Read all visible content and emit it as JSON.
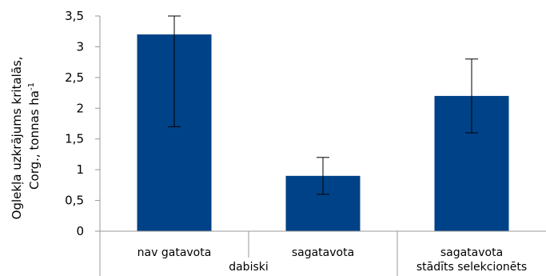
{
  "chart_data": {
    "type": "bar",
    "ylabel_lines": [
      "Oglekļa uzkrājums kritalās,",
      "Corg., tonnas ha"
    ],
    "ylabel_superscript": "-1",
    "ylim": [
      0,
      3.5
    ],
    "y_ticks": [
      {
        "value": 0,
        "label": "0"
      },
      {
        "value": 0.5,
        "label": "0,5"
      },
      {
        "value": 1,
        "label": "1"
      },
      {
        "value": 1.5,
        "label": "1,5"
      },
      {
        "value": 2,
        "label": "2"
      },
      {
        "value": 2.5,
        "label": "2,5"
      },
      {
        "value": 3,
        "label": "3"
      },
      {
        "value": 3.5,
        "label": "3,5"
      }
    ],
    "categories": [
      "nav gatavota",
      "sagatavota",
      "sagatavota"
    ],
    "groups": [
      {
        "label": "dabiski",
        "span": 2
      },
      {
        "label": "stādīts selekcionēts",
        "span": 1
      }
    ],
    "values": [
      3.2,
      0.9,
      2.2
    ],
    "error_low": [
      1.7,
      0.6,
      1.6
    ],
    "error_high": [
      3.5,
      1.2,
      2.8
    ],
    "grid": false,
    "legend": "none",
    "bar_color": "#004287"
  }
}
